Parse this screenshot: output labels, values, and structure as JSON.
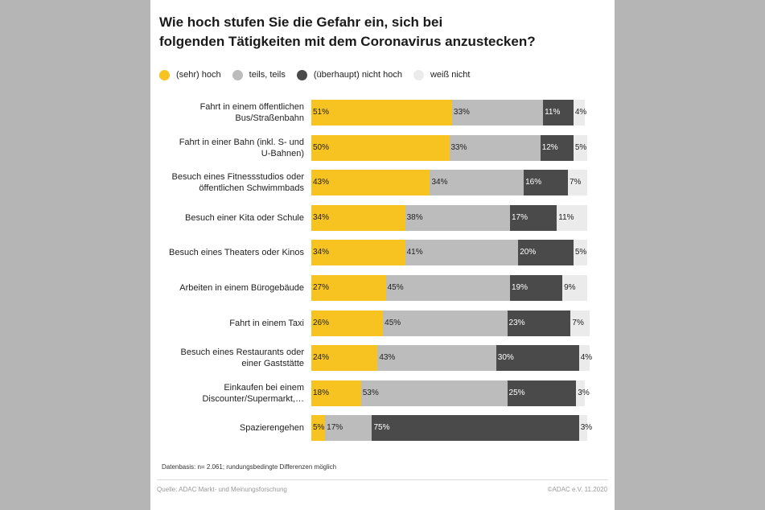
{
  "title_line1": "Wie hoch stufen Sie die Gefahr ein, sich bei",
  "title_line2": "folgenden Tätigkeiten mit dem Coronavirus anzustecken?",
  "footnote": "Datenbasis: n= 2.061; rundungsbedingte Differenzen möglich",
  "source": "Quelle: ADAC Markt- und Meinungsforschung",
  "copyright": "©ADAC e.V.  11.2020",
  "colors": {
    "high": "#f6c321",
    "medium": "#bcbcbc",
    "low": "#4a4a4a",
    "unknown": "#ebebeb"
  },
  "chart_data": {
    "type": "bar",
    "orientation": "horizontal",
    "stacked": true,
    "unit": "%",
    "legend_position": "top",
    "categories": [
      [
        "Fahrt in einem öffentlichen",
        "Bus/Straßenbahn"
      ],
      [
        "Fahrt in einer Bahn (inkl. S- und",
        "U-Bahnen)"
      ],
      [
        "Besuch eines Fitnessstudios oder",
        "öffentlichen Schwimmbads"
      ],
      [
        "Besuch einer Kita oder Schule"
      ],
      [
        "Besuch eines Theaters oder Kinos"
      ],
      [
        "Arbeiten in einem Bürogebäude"
      ],
      [
        "Fahrt in einem Taxi"
      ],
      [
        "Besuch eines Restaurants oder",
        "einer Gaststätte"
      ],
      [
        "Einkaufen bei einem",
        "Discounter/Supermarkt,…"
      ],
      [
        "Spazierengehen"
      ]
    ],
    "series": [
      {
        "name": "(sehr) hoch",
        "color_key": "high",
        "values": [
          51,
          50,
          43,
          34,
          34,
          27,
          26,
          24,
          18,
          5
        ]
      },
      {
        "name": "teils, teils",
        "color_key": "medium",
        "values": [
          33,
          33,
          34,
          38,
          41,
          45,
          45,
          43,
          53,
          17
        ]
      },
      {
        "name": "(überhaupt) nicht hoch",
        "color_key": "low",
        "values": [
          11,
          12,
          16,
          17,
          20,
          19,
          23,
          30,
          25,
          75
        ]
      },
      {
        "name": "weiß nicht",
        "color_key": "unknown",
        "values": [
          4,
          5,
          7,
          11,
          5,
          9,
          7,
          4,
          3,
          3
        ]
      }
    ]
  }
}
